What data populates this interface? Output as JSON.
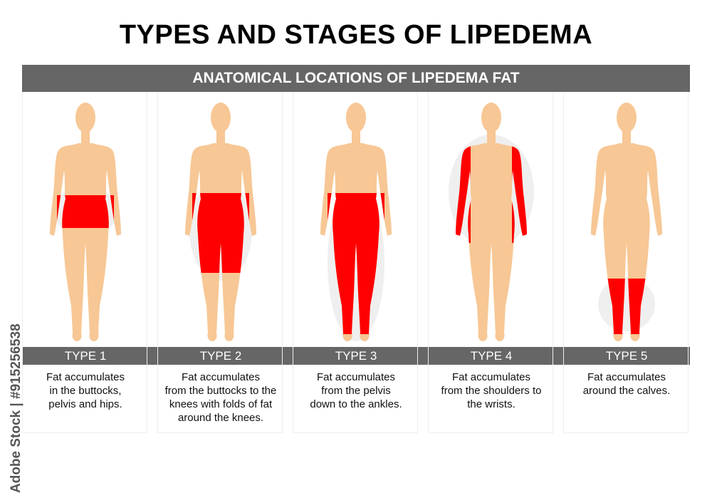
{
  "title": "TYPES AND STAGES OF LIPEDEMA",
  "section_header": "ANATOMICAL LOCATIONS OF LIPEDEMA FAT",
  "colors": {
    "header_bar": "#666666",
    "fat": "#ff0000",
    "skin": "#f7c795",
    "halo": "#efefef"
  },
  "types": [
    {
      "label": "TYPE 1",
      "description": "Fat accumulates\nin the buttocks,\npelvis and hips."
    },
    {
      "label": "TYPE 2",
      "description": "Fat accumulates\nfrom the buttocks to the\nknees with folds of fat\naround the knees."
    },
    {
      "label": "TYPE 3",
      "description": "Fat accumulates\nfrom the pelvis\ndown to the ankles."
    },
    {
      "label": "TYPE 4",
      "description": "Fat accumulates\nfrom the shoulders to\nthe wrists."
    },
    {
      "label": "TYPE 5",
      "description": "Fat accumulates\naround the calves."
    }
  ],
  "watermark": "Adobe Stock | #915256538"
}
